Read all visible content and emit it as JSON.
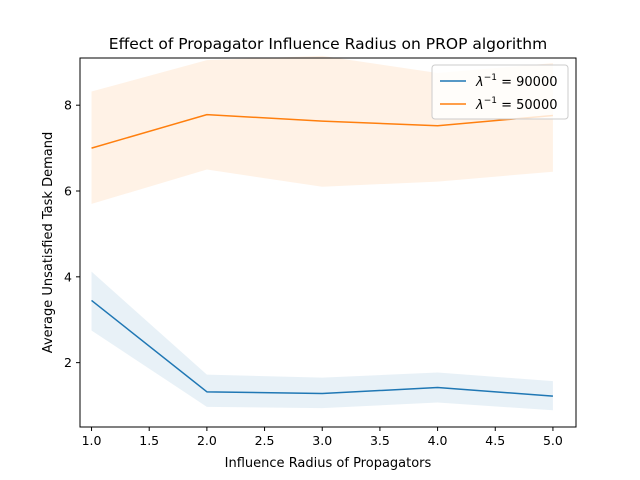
{
  "chart_data": {
    "type": "line",
    "title": "Effect of Propagator Influence Radius on PROP algorithm",
    "xlabel": "Influence Radius of Propagators",
    "ylabel": "Average Unsatisfied Task Demand",
    "x": [
      1.0,
      2.0,
      3.0,
      4.0,
      5.0
    ],
    "xlim": [
      0.9,
      5.2
    ],
    "ylim": [
      0.5,
      9.1
    ],
    "xticks": [
      1.0,
      1.5,
      2.0,
      2.5,
      3.0,
      3.5,
      4.0,
      4.5,
      5.0
    ],
    "xtick_labels": [
      "1.0",
      "1.5",
      "2.0",
      "2.5",
      "3.0",
      "3.5",
      "4.0",
      "4.5",
      "5.0"
    ],
    "yticks": [
      2,
      4,
      6,
      8
    ],
    "ytick_labels": [
      "2",
      "4",
      "6",
      "8"
    ],
    "grid": false,
    "legend_position": "top-right",
    "series": [
      {
        "name": "λ^-1 = 90000",
        "legend_main": "λ",
        "legend_sup": "−1",
        "legend_rest": " = 90000",
        "color": "#1f77b4",
        "values": [
          3.45,
          1.32,
          1.28,
          1.42,
          1.22
        ],
        "lower": [
          2.75,
          0.97,
          0.94,
          1.07,
          0.89
        ],
        "upper": [
          4.12,
          1.72,
          1.65,
          1.77,
          1.57
        ]
      },
      {
        "name": "λ^-1 = 50000",
        "legend_main": "λ",
        "legend_sup": "−1",
        "legend_rest": " = 50000",
        "color": "#ff7f0e",
        "values": [
          7.0,
          7.78,
          7.63,
          7.52,
          7.76
        ],
        "lower": [
          5.7,
          6.5,
          6.1,
          6.22,
          6.45
        ],
        "upper": [
          8.32,
          9.05,
          9.15,
          8.75,
          8.98
        ]
      }
    ]
  }
}
